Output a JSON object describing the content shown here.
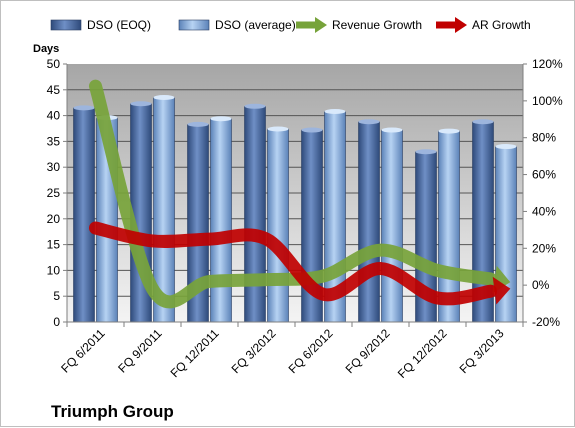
{
  "chart_data": {
    "type": "bar",
    "title": "Triumph Group",
    "categories": [
      "FQ 6/2011",
      "FQ 9/2011",
      "FQ 12/2011",
      "FQ 3/2012",
      "FQ 6/2012",
      "FQ 9/2012",
      "FQ 12/2012",
      "FQ 3/2013"
    ],
    "series": [
      {
        "name": "DSO (EOQ)",
        "kind": "bar",
        "axis": "left",
        "color": "#4f6fa8",
        "values": [
          41.5,
          42.3,
          38.3,
          41.8,
          37.2,
          38.8,
          33.0,
          38.8
        ]
      },
      {
        "name": "DSO (average)",
        "kind": "bar",
        "axis": "left",
        "color": "#8cb3e3",
        "values": [
          39.6,
          43.5,
          39.4,
          37.4,
          40.8,
          37.2,
          37.0,
          34.0
        ]
      },
      {
        "name": "Revenue Growth",
        "kind": "line",
        "axis": "right",
        "color": "#77a33a",
        "values": [
          1.08,
          -0.02,
          0.02,
          0.03,
          0.05,
          0.19,
          0.08,
          0.03
        ]
      },
      {
        "name": "AR Growth",
        "kind": "line",
        "axis": "right",
        "color": "#c00000",
        "values": [
          0.31,
          0.24,
          0.25,
          0.25,
          -0.05,
          0.09,
          -0.07,
          -0.03
        ]
      }
    ],
    "ylabel": "Days",
    "ylim": [
      0,
      50
    ],
    "yticks": [
      "0",
      "5",
      "10",
      "15",
      "20",
      "25",
      "30",
      "35",
      "40",
      "45",
      "50"
    ],
    "y2lim": [
      -0.2,
      1.2
    ],
    "y2ticks": [
      "-20%",
      "0%",
      "20%",
      "40%",
      "60%",
      "80%",
      "100%",
      "120%"
    ],
    "grid": true,
    "legend_position": "top"
  }
}
